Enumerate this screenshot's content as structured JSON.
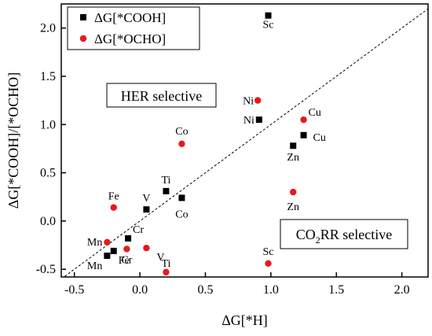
{
  "chart_data": {
    "type": "scatter",
    "xlabel": "ΔG[*H]",
    "ylabel": "ΔG[*COOH]/[*OCHO]",
    "xlim": [
      -0.6,
      2.2
    ],
    "ylim": [
      -0.58,
      2.25
    ],
    "xticks": [
      "-0.5",
      "0.0",
      "0.5",
      "1.0",
      "1.5",
      "2.0"
    ],
    "yticks": [
      "-0.5",
      "0.0",
      "0.5",
      "1.0",
      "1.5",
      "2.0"
    ],
    "xtick_values": [
      -0.5,
      0.0,
      0.5,
      1.0,
      1.5,
      2.0
    ],
    "ytick_values": [
      -0.5,
      0.0,
      0.5,
      1.0,
      1.5,
      2.0
    ],
    "grid": false,
    "legend_position": "top-left",
    "diagonal_reference_line": true,
    "series": [
      {
        "name": "ΔG[*COOH]",
        "marker": "square",
        "color": "#000000",
        "points": [
          {
            "label": "Sc",
            "x": 0.98,
            "y": 2.13
          },
          {
            "label": "Ni",
            "x": 0.91,
            "y": 1.05
          },
          {
            "label": "Cu",
            "x": 1.25,
            "y": 0.89
          },
          {
            "label": "Zn",
            "x": 1.17,
            "y": 0.78
          },
          {
            "label": "Ti",
            "x": 0.2,
            "y": 0.31
          },
          {
            "label": "Co",
            "x": 0.32,
            "y": 0.24
          },
          {
            "label": "V",
            "x": 0.05,
            "y": 0.12
          },
          {
            "label": "Cr",
            "x": -0.09,
            "y": -0.18
          },
          {
            "label": "Fe",
            "x": -0.2,
            "y": -0.31
          },
          {
            "label": "Mn",
            "x": -0.25,
            "y": -0.36
          }
        ]
      },
      {
        "name": "ΔG[*OCHO]",
        "marker": "circle",
        "color": "#e8191c",
        "points": [
          {
            "label": "Ni",
            "x": 0.9,
            "y": 1.25
          },
          {
            "label": "Cu",
            "x": 1.25,
            "y": 1.05
          },
          {
            "label": "Co",
            "x": 0.32,
            "y": 0.8
          },
          {
            "label": "Zn",
            "x": 1.17,
            "y": 0.3
          },
          {
            "label": "Fe",
            "x": -0.2,
            "y": 0.14
          },
          {
            "label": "Mn",
            "x": -0.25,
            "y": -0.22
          },
          {
            "label": "Cr",
            "x": -0.1,
            "y": -0.29
          },
          {
            "label": "V",
            "x": 0.05,
            "y": -0.28
          },
          {
            "label": "Ti",
            "x": 0.2,
            "y": -0.53
          },
          {
            "label": "Sc",
            "x": 0.98,
            "y": -0.44
          }
        ]
      }
    ],
    "annotations": [
      {
        "text": "HER selective",
        "position": "upper-left region, boxed"
      },
      {
        "text_prefix": "CO",
        "text_subscript": "2",
        "text_suffix": "RR selective",
        "position": "lower-right region, boxed"
      }
    ]
  }
}
